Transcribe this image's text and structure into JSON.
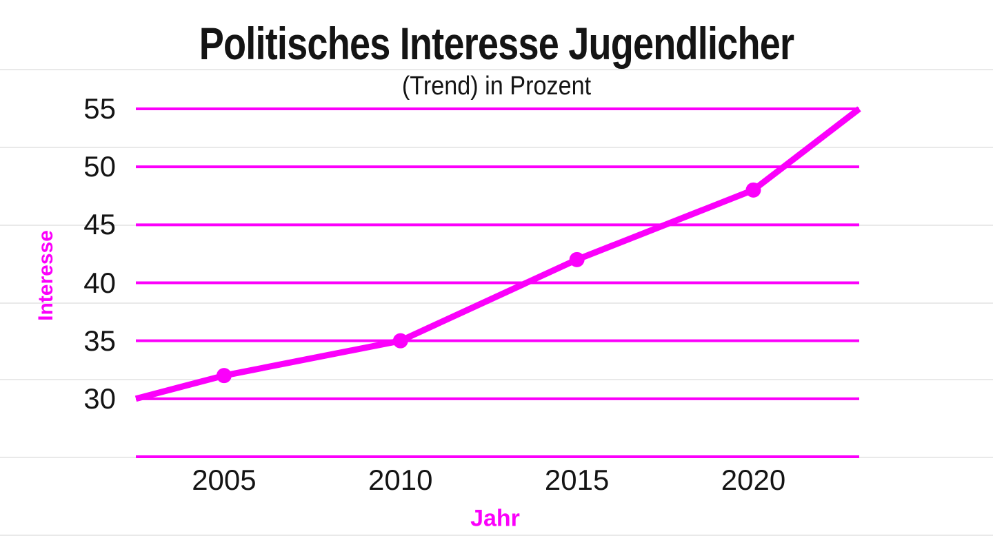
{
  "chart_data": {
    "type": "line",
    "title": "Politisches Interesse Jugendlicher",
    "subtitle": "(Trend) in Prozent",
    "xlabel": "Jahr",
    "ylabel": "Interesse",
    "x_ticks": [
      2005,
      2010,
      2015,
      2020
    ],
    "y_ticks": [
      30,
      35,
      40,
      45,
      50,
      55
    ],
    "xlim": [
      2002.5,
      2023
    ],
    "ylim": [
      25,
      55
    ],
    "grid": "horizontal gridlines at every y tick, accent colored; baseline at bottom of plot",
    "legend": false,
    "series": [
      {
        "name": "Politisches Interesse (Trend) in Prozent",
        "x": [
          2002.5,
          2005,
          2010,
          2015,
          2020,
          2023
        ],
        "y": [
          30,
          32,
          35,
          42,
          48,
          55
        ],
        "marker_points": [
          [
            2005,
            32
          ],
          [
            2010,
            35
          ],
          [
            2015,
            42
          ],
          [
            2020,
            48
          ]
        ]
      }
    ]
  },
  "style": {
    "accent_color": "#fb00fb",
    "text_color": "#141414",
    "background_rule_color": "#e9e9e9",
    "background_color": "#ffffff"
  }
}
